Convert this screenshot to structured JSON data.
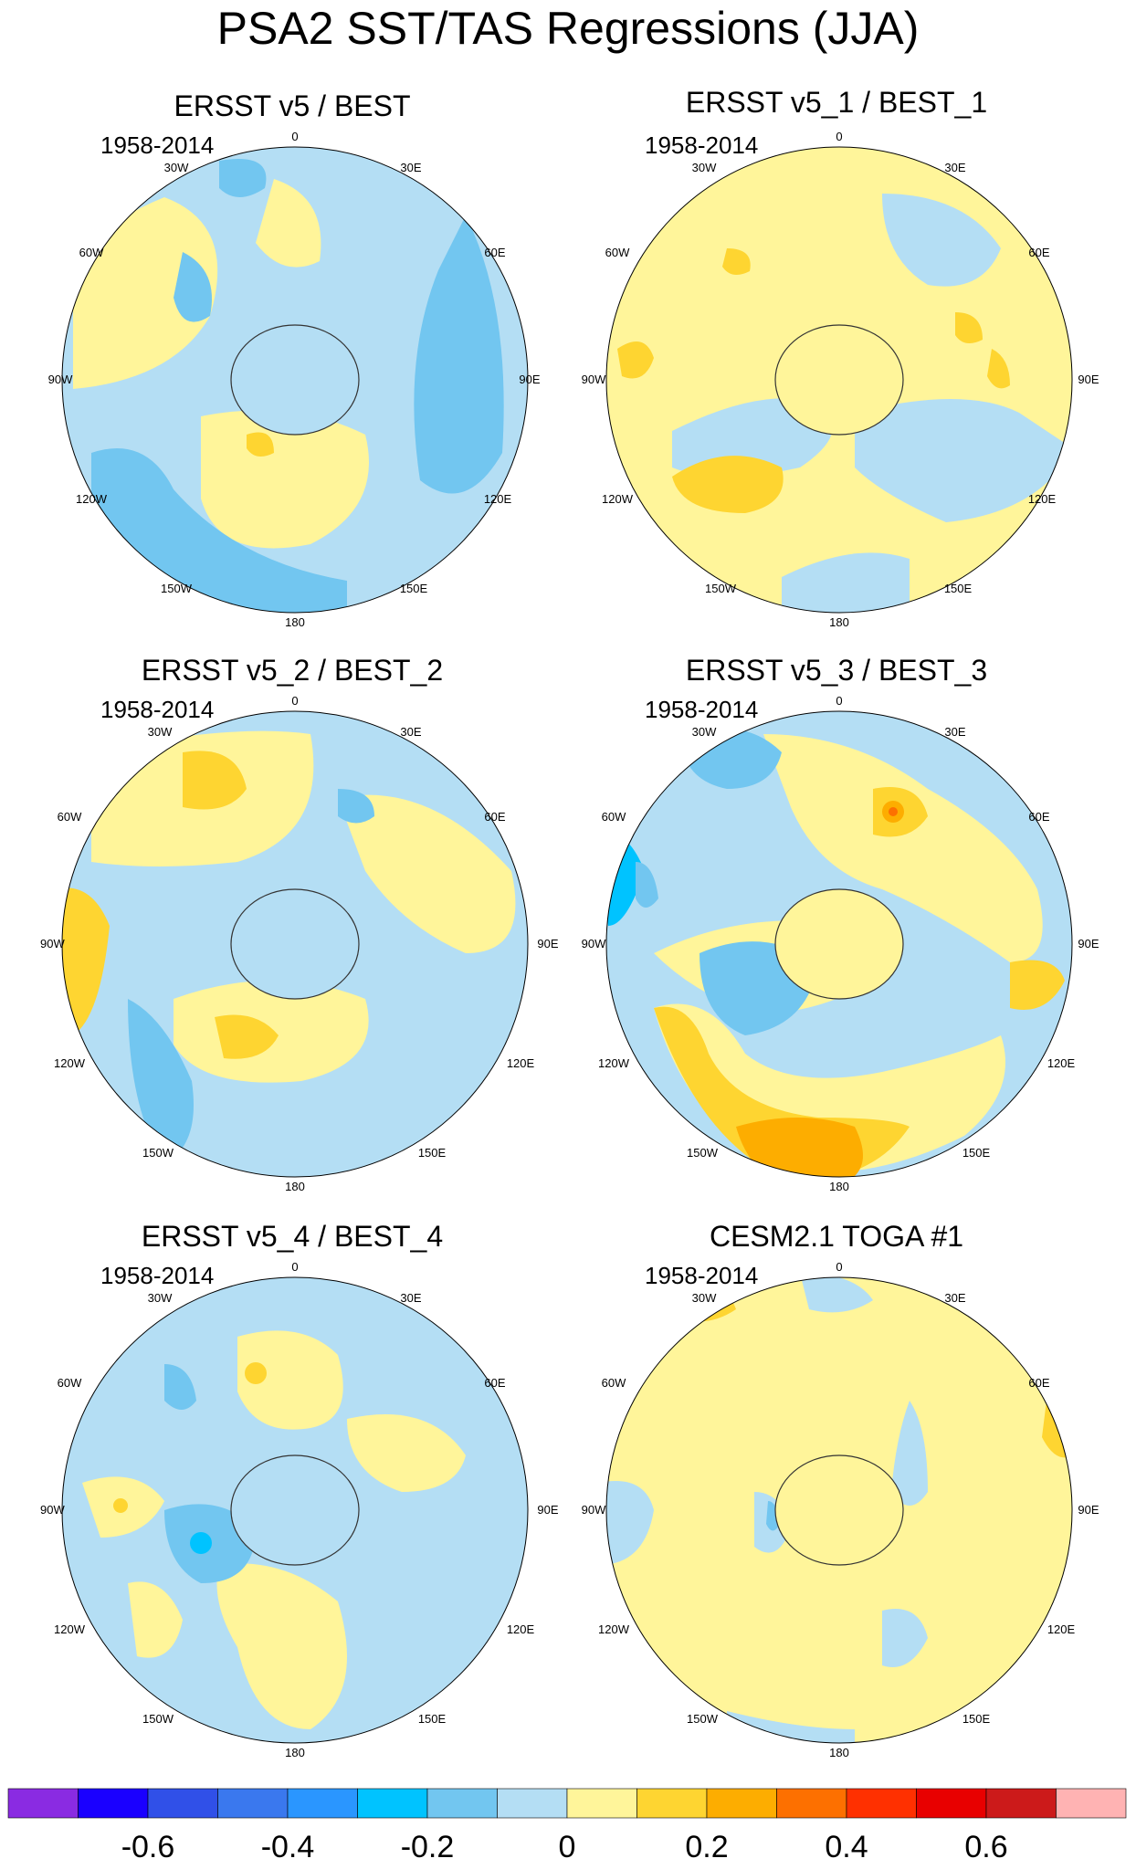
{
  "title": "PSA2 SST/TAS Regressions (JJA)",
  "panels": [
    {
      "title": "ERSST v5 / BEST",
      "period": "1958-2014"
    },
    {
      "title": "ERSST v5_1 / BEST_1",
      "period": "1958-2014"
    },
    {
      "title": "ERSST v5_2 / BEST_2",
      "period": "1958-2014"
    },
    {
      "title": "ERSST v5_3 / BEST_3",
      "period": "1958-2014"
    },
    {
      "title": "ERSST v5_4 / BEST_4",
      "period": "1958-2014"
    },
    {
      "title": "CESM2.1 TOGA #1",
      "period": "1958-2014"
    }
  ],
  "longitude_labels": [
    "0",
    "30E",
    "60E",
    "90E",
    "120E",
    "150E",
    "180",
    "150W",
    "120W",
    "90W",
    "60W",
    "30W"
  ],
  "colorbar": {
    "colors": [
      "#8a2be2",
      "#1a00ff",
      "#3050e8",
      "#3a78ee",
      "#2a96ff",
      "#00c3ff",
      "#72c6f0",
      "#b4def4",
      "#fff59a",
      "#fed531",
      "#fdad00",
      "#fd7000",
      "#ff3000",
      "#e80000",
      "#cc1a1a",
      "#ffb3b3"
    ],
    "tick_labels": [
      "-0.6",
      "-0.4",
      "-0.2",
      "0",
      "0.2",
      "0.4",
      "0.6"
    ]
  }
}
